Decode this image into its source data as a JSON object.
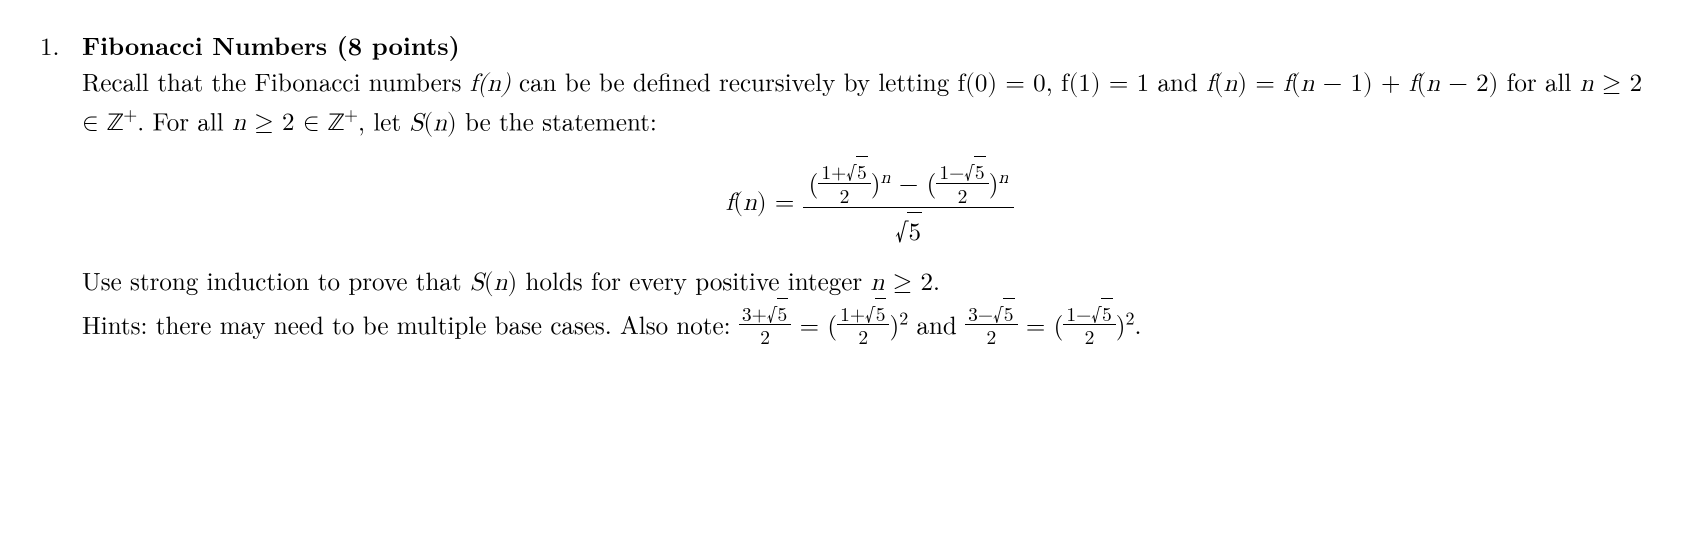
{
  "problem": {
    "number": "1.",
    "title": "Fibonacci Numbers (8 points)",
    "para1_part1": "Recall that the Fibonacci numbers ",
    "fn": "f(n)",
    "para1_part2": " can be be defined recursively by letting ",
    "f0": "f(0) = 0",
    "comma1": ", ",
    "f1": "f(1) = 1",
    "and1": " and ",
    "fn_eq": "f(n) = f(n − 1) + f(n − 2)",
    "forall": " for all ",
    "n_ge_2": "n ≥ 2 ∈ ",
    "Zplus": "ℤ",
    "plus": "+",
    "period1": ". For all ",
    "let_stmt": ", let ",
    "Sn": "S(n)",
    "be_stmt": " be the statement:",
    "formula_lhs": "f(n) = ",
    "phi_plus_num": "1+",
    "sqrt5": "5",
    "two": "2",
    "phi_minus_num": "1−",
    "minus": " − ",
    "exp_n": "n",
    "para2_part1": "Use strong induction to prove that ",
    "para2_part2": " holds for every positive integer ",
    "n_ge_2b": "n ≥ 2",
    "period2": ".",
    "hints_part1": "Hints: there may need to be multiple base cases. Also note: ",
    "three_plus": "3+",
    "eq": " = ",
    "open_p": "(",
    "close_p": ")",
    "sq": "2",
    "and2": " and ",
    "three_minus": "3−",
    "period3": "."
  }
}
